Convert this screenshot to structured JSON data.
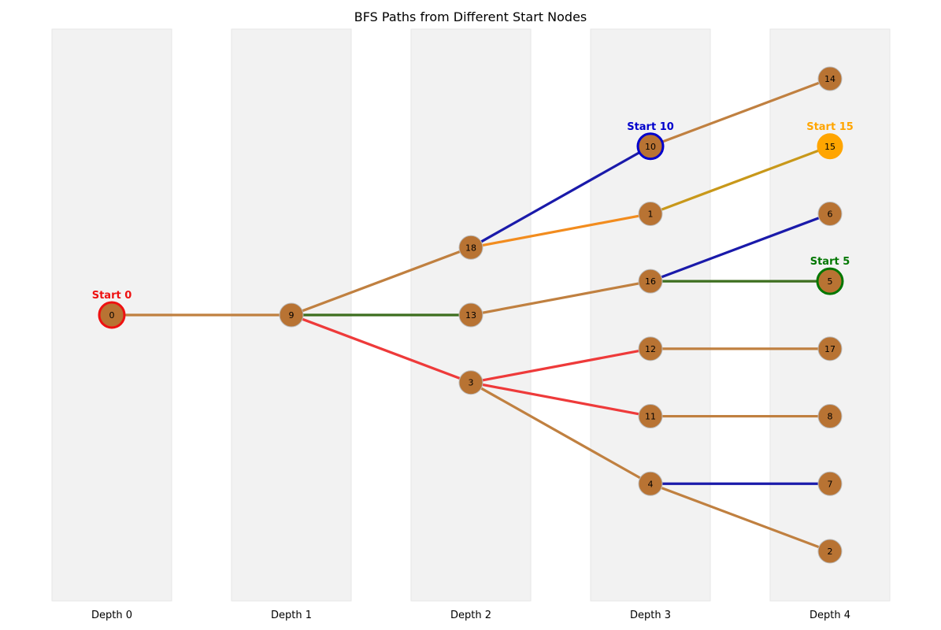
{
  "title": "BFS Paths from Different Start Nodes",
  "depths": [
    "Depth 0",
    "Depth 1",
    "Depth 2",
    "Depth 3",
    "Depth 4"
  ],
  "colors": {
    "node_fill": "#b87333",
    "node_stroke": "#bbbbbb",
    "column_bg": "#f2f2f2",
    "start_0": "#ee1111",
    "start_5": "#007700",
    "start_10": "#0000cc",
    "start_15": "#ffa500",
    "edge_shared": "#c08040",
    "edge_red": "#ee3a3a",
    "edge_blue": "#1a1aaa",
    "edge_green": "#3c6e1e",
    "edge_orange": "#f28c1e",
    "edge_gold": "#c8981a"
  },
  "nodes": [
    {
      "id": "0",
      "depth": 0,
      "row": 0.0
    },
    {
      "id": "9",
      "depth": 1,
      "row": 0.0
    },
    {
      "id": "18",
      "depth": 2,
      "row": -1.0
    },
    {
      "id": "13",
      "depth": 2,
      "row": 0.0
    },
    {
      "id": "3",
      "depth": 2,
      "row": 1.0
    },
    {
      "id": "10",
      "depth": 3,
      "row": -2.5
    },
    {
      "id": "1",
      "depth": 3,
      "row": -1.5
    },
    {
      "id": "16",
      "depth": 3,
      "row": -0.5
    },
    {
      "id": "12",
      "depth": 3,
      "row": 0.5
    },
    {
      "id": "11",
      "depth": 3,
      "row": 1.5
    },
    {
      "id": "4",
      "depth": 3,
      "row": 2.5
    },
    {
      "id": "14",
      "depth": 4,
      "row": -3.5
    },
    {
      "id": "15",
      "depth": 4,
      "row": -2.5
    },
    {
      "id": "6",
      "depth": 4,
      "row": -1.5
    },
    {
      "id": "5",
      "depth": 4,
      "row": -0.5
    },
    {
      "id": "17",
      "depth": 4,
      "row": 0.5
    },
    {
      "id": "8",
      "depth": 4,
      "row": 1.5
    },
    {
      "id": "7",
      "depth": 4,
      "row": 2.5
    },
    {
      "id": "2",
      "depth": 4,
      "row": 3.5
    }
  ],
  "edges": [
    {
      "from": "0",
      "to": "9",
      "color": "edge_shared"
    },
    {
      "from": "9",
      "to": "18",
      "color": "edge_shared"
    },
    {
      "from": "9",
      "to": "13",
      "color": "edge_green"
    },
    {
      "from": "9",
      "to": "3",
      "color": "edge_red"
    },
    {
      "from": "18",
      "to": "10",
      "color": "edge_blue"
    },
    {
      "from": "18",
      "to": "1",
      "color": "edge_orange"
    },
    {
      "from": "13",
      "to": "16",
      "color": "edge_shared"
    },
    {
      "from": "3",
      "to": "12",
      "color": "edge_red"
    },
    {
      "from": "3",
      "to": "11",
      "color": "edge_red"
    },
    {
      "from": "3",
      "to": "4",
      "color": "edge_shared"
    },
    {
      "from": "10",
      "to": "14",
      "color": "edge_shared"
    },
    {
      "from": "1",
      "to": "15",
      "color": "edge_gold"
    },
    {
      "from": "16",
      "to": "6",
      "color": "edge_blue"
    },
    {
      "from": "16",
      "to": "5",
      "color": "edge_green"
    },
    {
      "from": "12",
      "to": "17",
      "color": "edge_shared"
    },
    {
      "from": "11",
      "to": "8",
      "color": "edge_shared"
    },
    {
      "from": "4",
      "to": "7",
      "color": "edge_blue"
    },
    {
      "from": "4",
      "to": "2",
      "color": "edge_shared"
    }
  ],
  "starts": [
    {
      "node": "0",
      "label": "Start 0",
      "color": "start_0",
      "style": "ring"
    },
    {
      "node": "10",
      "label": "Start 10",
      "color": "start_10",
      "style": "ring"
    },
    {
      "node": "15",
      "label": "Start 15",
      "color": "start_15",
      "style": "fill"
    },
    {
      "node": "5",
      "label": "Start 5",
      "color": "start_5",
      "style": "ring"
    }
  ]
}
